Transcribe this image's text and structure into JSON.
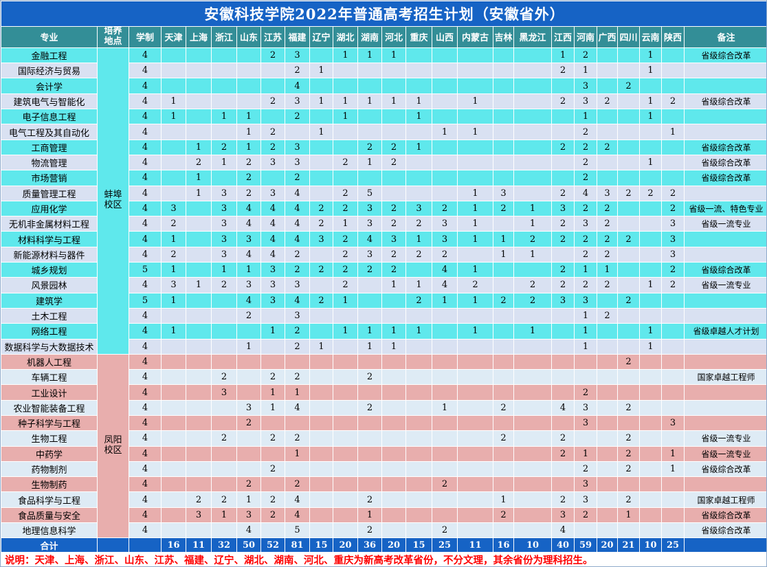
{
  "title": "安徽科技学院2022年普通高考招生计划（安徽省外）",
  "columns": [
    "专业",
    "培养地点",
    "学制",
    "天津",
    "上海",
    "浙江",
    "山东",
    "江苏",
    "福建",
    "辽宁",
    "湖北",
    "湖南",
    "河北",
    "重庆",
    "山西",
    "内蒙古",
    "吉林",
    "黑龙江",
    "江西",
    "河南",
    "广西",
    "四川",
    "云南",
    "陕西",
    "备注"
  ],
  "campuses": [
    {
      "name": "蚌埠校区",
      "rows": [
        {
          "major": "金融工程",
          "duration": "4",
          "values": [
            "",
            "",
            "",
            "",
            "2",
            "3",
            "",
            "1",
            "1",
            "1",
            "",
            "",
            "",
            "",
            "",
            "1",
            "2",
            "",
            "",
            "1",
            ""
          ],
          "remark": "省级综合改革"
        },
        {
          "major": "国际经济与贸易",
          "duration": "4",
          "values": [
            "",
            "",
            "",
            "",
            "",
            "2",
            "1",
            "",
            "",
            "",
            "",
            "",
            "",
            "",
            "",
            "2",
            "1",
            "",
            "",
            "1",
            ""
          ],
          "remark": ""
        },
        {
          "major": "会计学",
          "duration": "4",
          "values": [
            "",
            "",
            "",
            "",
            "",
            "4",
            "",
            "",
            "",
            "",
            "",
            "",
            "",
            "",
            "",
            "",
            "3",
            "",
            "2",
            "",
            ""
          ],
          "remark": ""
        },
        {
          "major": "建筑电气与智能化",
          "duration": "4",
          "values": [
            "1",
            "",
            "",
            "",
            "2",
            "3",
            "1",
            "1",
            "1",
            "1",
            "1",
            "",
            "1",
            "",
            "",
            "2",
            "3",
            "2",
            "",
            "1",
            "2"
          ],
          "remark": "省级综合改革"
        },
        {
          "major": "电子信息工程",
          "duration": "4",
          "values": [
            "1",
            "",
            "1",
            "1",
            "",
            "2",
            "",
            "1",
            "",
            "",
            "1",
            "",
            "",
            "",
            "",
            "",
            "1",
            "",
            "",
            "1",
            ""
          ],
          "remark": ""
        },
        {
          "major": "电气工程及其自动化",
          "duration": "4",
          "values": [
            "",
            "",
            "",
            "1",
            "2",
            "",
            "1",
            "",
            "",
            "",
            "",
            "1",
            "1",
            "",
            "",
            "",
            "2",
            "",
            "",
            "",
            "1"
          ],
          "remark": ""
        },
        {
          "major": "工商管理",
          "duration": "4",
          "values": [
            "",
            "1",
            "2",
            "1",
            "2",
            "3",
            "",
            "",
            "2",
            "2",
            "1",
            "",
            "",
            "",
            "",
            "2",
            "2",
            "2",
            "",
            "",
            ""
          ],
          "remark": "省级综合改革"
        },
        {
          "major": "物流管理",
          "duration": "4",
          "values": [
            "",
            "2",
            "1",
            "2",
            "3",
            "3",
            "",
            "2",
            "1",
            "2",
            "",
            "",
            "",
            "",
            "",
            "",
            "2",
            "",
            "",
            "1",
            ""
          ],
          "remark": "省级综合改革"
        },
        {
          "major": "市场营销",
          "duration": "4",
          "values": [
            "",
            "1",
            "",
            "2",
            "",
            "2",
            "",
            "",
            "",
            "",
            "",
            "",
            "",
            "",
            "",
            "",
            "2",
            "",
            "",
            "",
            ""
          ],
          "remark": "省级综合改革"
        },
        {
          "major": "质量管理工程",
          "duration": "4",
          "values": [
            "",
            "1",
            "3",
            "2",
            "3",
            "4",
            "",
            "2",
            "5",
            "",
            "",
            "",
            "1",
            "3",
            "",
            "2",
            "4",
            "3",
            "2",
            "2",
            "2"
          ],
          "remark": ""
        },
        {
          "major": "应用化学",
          "duration": "4",
          "values": [
            "3",
            "",
            "3",
            "4",
            "4",
            "4",
            "2",
            "2",
            "3",
            "2",
            "3",
            "2",
            "1",
            "2",
            "1",
            "3",
            "2",
            "2",
            "",
            "",
            "2"
          ],
          "remark": "省级一流、特色专业"
        },
        {
          "major": "无机非金属材料工程",
          "duration": "4",
          "values": [
            "2",
            "",
            "3",
            "4",
            "4",
            "4",
            "2",
            "1",
            "3",
            "2",
            "2",
            "3",
            "1",
            "",
            "1",
            "2",
            "3",
            "2",
            "",
            "",
            "3"
          ],
          "remark": "省级一流专业"
        },
        {
          "major": "材料科学与工程",
          "duration": "4",
          "values": [
            "1",
            "",
            "3",
            "3",
            "4",
            "4",
            "3",
            "2",
            "4",
            "3",
            "1",
            "3",
            "1",
            "1",
            "2",
            "2",
            "2",
            "2",
            "2",
            "",
            "3"
          ],
          "remark": ""
        },
        {
          "major": "新能源材料与器件",
          "duration": "4",
          "values": [
            "2",
            "",
            "3",
            "4",
            "4",
            "2",
            "",
            "2",
            "3",
            "2",
            "2",
            "2",
            "",
            "1",
            "1",
            "",
            "2",
            "2",
            "",
            "",
            "3"
          ],
          "remark": ""
        },
        {
          "major": "城乡规划",
          "duration": "5",
          "values": [
            "1",
            "",
            "1",
            "1",
            "3",
            "2",
            "2",
            "2",
            "2",
            "2",
            "",
            "4",
            "1",
            "",
            "",
            "2",
            "1",
            "1",
            "",
            "",
            "2"
          ],
          "remark": "省级综合改革"
        },
        {
          "major": "风景园林",
          "duration": "4",
          "values": [
            "3",
            "1",
            "2",
            "3",
            "3",
            "3",
            "",
            "2",
            "",
            "1",
            "1",
            "4",
            "2",
            "",
            "2",
            "2",
            "2",
            "2",
            "",
            "1",
            "2"
          ],
          "remark": "省级一流专业"
        },
        {
          "major": "建筑学",
          "duration": "5",
          "values": [
            "1",
            "",
            "",
            "4",
            "3",
            "4",
            "2",
            "1",
            "",
            "",
            "2",
            "1",
            "1",
            "2",
            "2",
            "3",
            "3",
            "",
            "2",
            "",
            ""
          ],
          "remark": ""
        },
        {
          "major": "土木工程",
          "duration": "4",
          "values": [
            "",
            "",
            "",
            "2",
            "",
            "3",
            "",
            "",
            "",
            "",
            "",
            "",
            "",
            "",
            "",
            "",
            "1",
            "2",
            "",
            "",
            ""
          ],
          "remark": ""
        },
        {
          "major": "网络工程",
          "duration": "4",
          "values": [
            "1",
            "",
            "",
            "",
            "1",
            "2",
            "",
            "1",
            "1",
            "1",
            "1",
            "",
            "1",
            "",
            "1",
            "",
            "1",
            "",
            "",
            "1",
            ""
          ],
          "remark": "省级卓越人才计划"
        },
        {
          "major": "数据科学与大数据技术",
          "duration": "4",
          "values": [
            "",
            "",
            "",
            "1",
            "",
            "2",
            "1",
            "",
            "1",
            "1",
            "",
            "",
            "",
            "",
            "",
            "",
            "1",
            "",
            "",
            "1",
            ""
          ],
          "remark": ""
        }
      ]
    },
    {
      "name": "凤阳校区",
      "rows": [
        {
          "major": "机器人工程",
          "duration": "4",
          "values": [
            "",
            "",
            "",
            "",
            "",
            "",
            "",
            "",
            "",
            "",
            "",
            "",
            "",
            "",
            "",
            "",
            "",
            "",
            "2",
            "",
            ""
          ],
          "remark": ""
        },
        {
          "major": "车辆工程",
          "duration": "4",
          "values": [
            "",
            "",
            "2",
            "",
            "2",
            "2",
            "",
            "",
            "2",
            "",
            "",
            "",
            "",
            "",
            "",
            "",
            "",
            "",
            "",
            "",
            ""
          ],
          "remark": "国家卓越工程师"
        },
        {
          "major": "工业设计",
          "duration": "4",
          "values": [
            "",
            "",
            "3",
            "",
            "1",
            "1",
            "",
            "",
            "",
            "",
            "",
            "",
            "",
            "",
            "",
            "",
            "2",
            "",
            "",
            "",
            ""
          ],
          "remark": ""
        },
        {
          "major": "农业智能装备工程",
          "duration": "4",
          "values": [
            "",
            "",
            "",
            "3",
            "1",
            "4",
            "",
            "",
            "2",
            "",
            "",
            "1",
            "",
            "2",
            "",
            "4",
            "3",
            "",
            "2",
            "",
            ""
          ],
          "remark": ""
        },
        {
          "major": "种子科学与工程",
          "duration": "4",
          "values": [
            "",
            "",
            "",
            "2",
            "",
            "",
            "",
            "",
            "",
            "",
            "",
            "",
            "",
            "",
            "",
            "",
            "3",
            "",
            "",
            "",
            "3"
          ],
          "remark": ""
        },
        {
          "major": "生物工程",
          "duration": "4",
          "values": [
            "",
            "",
            "2",
            "",
            "2",
            "2",
            "",
            "",
            "",
            "",
            "",
            "",
            "",
            "2",
            "",
            "2",
            "",
            "",
            "2",
            "",
            ""
          ],
          "remark": "省级一流专业"
        },
        {
          "major": "中药学",
          "duration": "4",
          "values": [
            "",
            "",
            "",
            "",
            "",
            "1",
            "",
            "",
            "",
            "",
            "",
            "",
            "",
            "",
            "",
            "2",
            "1",
            "",
            "2",
            "",
            "1"
          ],
          "remark": "省级一流专业"
        },
        {
          "major": "药物制剂",
          "duration": "4",
          "values": [
            "",
            "",
            "",
            "",
            "2",
            "",
            "",
            "",
            "",
            "",
            "",
            "",
            "",
            "",
            "",
            "",
            "2",
            "",
            "2",
            "",
            "1"
          ],
          "remark": "省级综合改革"
        },
        {
          "major": "生物制药",
          "duration": "4",
          "values": [
            "",
            "",
            "",
            "2",
            "",
            "2",
            "",
            "",
            "",
            "",
            "",
            "2",
            "",
            "",
            "",
            "",
            "3",
            "",
            "",
            "",
            ""
          ],
          "remark": ""
        },
        {
          "major": "食品科学与工程",
          "duration": "4",
          "values": [
            "",
            "2",
            "2",
            "1",
            "2",
            "4",
            "",
            "",
            "2",
            "",
            "",
            "",
            "",
            "1",
            "",
            "2",
            "3",
            "",
            "2",
            "",
            ""
          ],
          "remark": "国家卓越工程师"
        },
        {
          "major": "食品质量与安全",
          "duration": "4",
          "values": [
            "",
            "3",
            "1",
            "3",
            "2",
            "4",
            "",
            "",
            "1",
            "",
            "",
            "",
            "",
            "2",
            "",
            "3",
            "2",
            "",
            "1",
            "",
            ""
          ],
          "remark": "省级综合改革"
        },
        {
          "major": "地理信息科学",
          "duration": "4",
          "values": [
            "",
            "",
            "",
            "4",
            "",
            "5",
            "",
            "",
            "2",
            "",
            "",
            "2",
            "",
            "",
            "",
            "4",
            "",
            "",
            "",
            "",
            ""
          ],
          "remark": "省级综合改革"
        }
      ]
    }
  ],
  "total": {
    "label": "合计",
    "values": [
      16,
      11,
      32,
      50,
      52,
      81,
      15,
      20,
      36,
      20,
      15,
      25,
      11,
      16,
      10,
      40,
      59,
      20,
      21,
      10,
      25
    ]
  },
  "note": "说明：天津、上海、浙江、山东、江苏、福建、辽宁、湖北、湖南、河北、重庆为新高考改革省份，不分文理，其余省份为理科招生。",
  "colors": {
    "title_bg": "#1663C5",
    "header_bg": "#338E97",
    "row_cyan": "#5FE8EC",
    "row_lavender": "#D9E1F2",
    "row_pink": "#E8AEAD",
    "row_pale": "#DEEBF5",
    "campus_bengbu_bg": "#5FE8EC",
    "campus_fengyang_bg": "#E8AEAD",
    "total_bg": "#1663C5",
    "note_color": "#FE0000"
  }
}
